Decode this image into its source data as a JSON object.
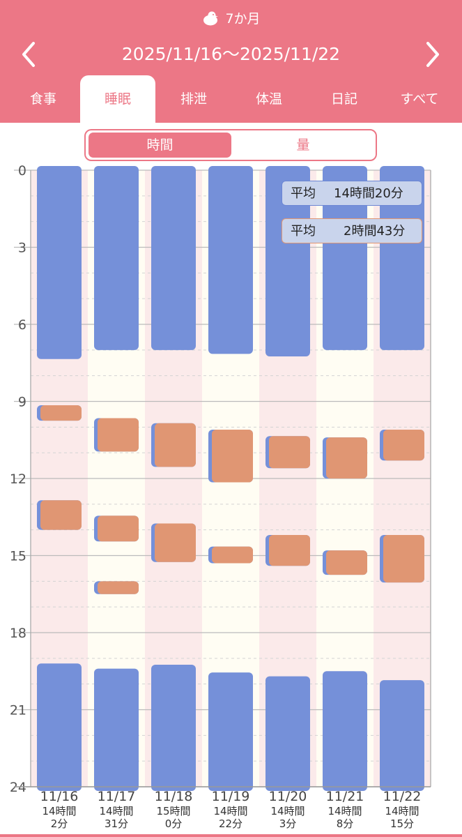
{
  "header": {
    "age_label": "7か月",
    "date_range": "2025/11/16〜2025/11/22",
    "prev_icon": "chevron-left-icon",
    "next_icon": "chevron-right-icon"
  },
  "tabs": [
    {
      "label": "食事",
      "active": false
    },
    {
      "label": "睡眠",
      "active": true
    },
    {
      "label": "排泄",
      "active": false
    },
    {
      "label": "体温",
      "active": false
    },
    {
      "label": "日記",
      "active": false
    },
    {
      "label": "すべて",
      "active": false
    }
  ],
  "toggle": {
    "time_label": "時間",
    "amount_label": "量",
    "selected": "時間"
  },
  "averages": {
    "label": "平均",
    "night_value": "14時間20分",
    "nap_value": "2時間43分"
  },
  "colors": {
    "accent": "#ec7786",
    "night_sleep": "#7590d9",
    "nap_sleep": "#e09673",
    "weekend_bg": "#fbeaea",
    "weekday_bg": "#fffdf3",
    "sunday_text": "#d02a45",
    "saturday_text": "#3b82d8"
  },
  "chart_data": {
    "type": "bar",
    "orientation": "vertical-timeline",
    "y_ticks": [
      "0",
      "3",
      "6",
      "9",
      "12",
      "15",
      "18",
      "21",
      "24"
    ],
    "ylim": [
      0,
      24
    ],
    "days": [
      {
        "date": "11/16",
        "total_line1": "14時間",
        "total_line2": "2分",
        "weekday": "sun",
        "sleeps": [
          {
            "start": 0,
            "end": 7.35,
            "kind": "night"
          },
          {
            "start": 9.15,
            "end": 9.75,
            "kind": "nap"
          },
          {
            "start": 12.85,
            "end": 14.0,
            "kind": "nap"
          },
          {
            "start": 19.2,
            "end": 24,
            "kind": "night"
          }
        ]
      },
      {
        "date": "11/17",
        "total_line1": "14時間",
        "total_line2": "31分",
        "weekday": "mon",
        "sleeps": [
          {
            "start": 0,
            "end": 7.0,
            "kind": "night"
          },
          {
            "start": 9.65,
            "end": 10.95,
            "kind": "nap"
          },
          {
            "start": 13.45,
            "end": 14.45,
            "kind": "nap"
          },
          {
            "start": 16.0,
            "end": 16.5,
            "kind": "nap"
          },
          {
            "start": 19.4,
            "end": 24,
            "kind": "night"
          }
        ]
      },
      {
        "date": "11/18",
        "total_line1": "15時間",
        "total_line2": "0分",
        "weekday": "tue",
        "sleeps": [
          {
            "start": 0,
            "end": 7.0,
            "kind": "night"
          },
          {
            "start": 9.85,
            "end": 11.55,
            "kind": "nap"
          },
          {
            "start": 13.75,
            "end": 15.25,
            "kind": "nap"
          },
          {
            "start": 19.25,
            "end": 24,
            "kind": "night"
          }
        ]
      },
      {
        "date": "11/19",
        "total_line1": "14時間",
        "total_line2": "22分",
        "weekday": "wed",
        "sleeps": [
          {
            "start": 0,
            "end": 7.15,
            "kind": "night"
          },
          {
            "start": 10.1,
            "end": 12.15,
            "kind": "nap"
          },
          {
            "start": 14.65,
            "end": 15.3,
            "kind": "nap"
          },
          {
            "start": 19.55,
            "end": 24,
            "kind": "night"
          }
        ]
      },
      {
        "date": "11/20",
        "total_line1": "14時間",
        "total_line2": "3分",
        "weekday": "thu",
        "sleeps": [
          {
            "start": 0,
            "end": 7.25,
            "kind": "night"
          },
          {
            "start": 10.35,
            "end": 11.6,
            "kind": "nap"
          },
          {
            "start": 14.2,
            "end": 15.4,
            "kind": "nap"
          },
          {
            "start": 19.7,
            "end": 24,
            "kind": "night"
          }
        ]
      },
      {
        "date": "11/21",
        "total_line1": "14時間",
        "total_line2": "8分",
        "weekday": "fri",
        "sleeps": [
          {
            "start": 0,
            "end": 7.0,
            "kind": "night"
          },
          {
            "start": 10.4,
            "end": 12.0,
            "kind": "nap"
          },
          {
            "start": 14.8,
            "end": 15.75,
            "kind": "nap"
          },
          {
            "start": 19.5,
            "end": 24,
            "kind": "night"
          }
        ]
      },
      {
        "date": "11/22",
        "total_line1": "14時間",
        "total_line2": "15分",
        "weekday": "sat",
        "sleeps": [
          {
            "start": 0,
            "end": 7.0,
            "kind": "night"
          },
          {
            "start": 10.1,
            "end": 11.3,
            "kind": "nap"
          },
          {
            "start": 14.2,
            "end": 16.05,
            "kind": "nap"
          },
          {
            "start": 19.85,
            "end": 24,
            "kind": "night"
          }
        ]
      }
    ]
  }
}
